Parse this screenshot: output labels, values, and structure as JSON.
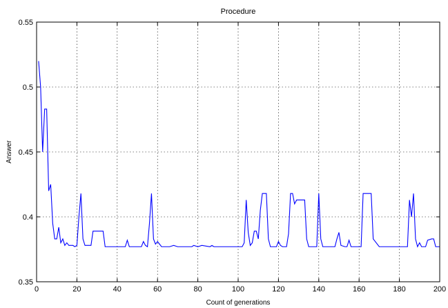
{
  "chart_data": {
    "type": "line",
    "title": "Procedure",
    "xlabel": "Count of generations",
    "ylabel": "Answer",
    "xlim": [
      0,
      200
    ],
    "ylim": [
      0.35,
      0.55
    ],
    "xticks": [
      0,
      20,
      40,
      60,
      80,
      100,
      120,
      140,
      160,
      180,
      200
    ],
    "yticks": [
      0.35,
      0.4,
      0.45,
      0.5,
      0.55
    ],
    "grid": true,
    "series_color": "#0000ff",
    "series": [
      {
        "x": [
          1,
          2,
          3,
          4,
          5,
          6,
          7,
          8,
          9,
          10,
          11,
          12,
          13,
          14,
          15,
          16,
          17,
          18,
          19,
          20,
          21,
          22,
          23,
          24,
          25,
          27,
          28,
          29,
          33,
          34,
          38,
          44,
          45,
          46,
          48,
          52,
          53,
          54,
          55,
          56,
          57,
          58,
          59,
          60,
          61,
          62,
          66,
          68,
          70,
          74,
          77,
          78,
          80,
          82,
          86,
          87,
          88,
          102,
          103,
          104,
          105,
          106,
          107,
          108,
          109,
          110,
          111,
          112,
          114,
          115,
          116,
          118,
          119,
          120,
          121,
          122,
          123,
          124,
          125,
          126,
          127,
          128,
          129,
          130,
          131,
          133,
          134,
          135,
          137,
          138,
          139,
          140,
          141,
          142,
          143,
          147,
          148,
          149,
          150,
          151,
          153,
          154,
          155,
          156,
          157,
          159,
          160,
          161,
          162,
          163,
          166,
          167,
          170,
          173,
          175,
          177,
          182,
          183,
          184,
          185,
          186,
          187,
          188,
          189,
          190,
          191,
          192,
          193,
          194,
          196,
          197,
          198,
          200
        ],
        "y": [
          0.52,
          0.5,
          0.45,
          0.483,
          0.483,
          0.42,
          0.425,
          0.395,
          0.383,
          0.383,
          0.392,
          0.38,
          0.383,
          0.378,
          0.38,
          0.378,
          0.378,
          0.378,
          0.377,
          0.378,
          0.4,
          0.418,
          0.383,
          0.378,
          0.378,
          0.378,
          0.389,
          0.389,
          0.389,
          0.377,
          0.377,
          0.377,
          0.382,
          0.377,
          0.377,
          0.377,
          0.381,
          0.378,
          0.377,
          0.395,
          0.418,
          0.383,
          0.379,
          0.381,
          0.379,
          0.377,
          0.377,
          0.378,
          0.377,
          0.377,
          0.377,
          0.378,
          0.377,
          0.378,
          0.377,
          0.378,
          0.377,
          0.377,
          0.38,
          0.413,
          0.388,
          0.378,
          0.38,
          0.389,
          0.389,
          0.383,
          0.405,
          0.418,
          0.418,
          0.383,
          0.377,
          0.377,
          0.377,
          0.381,
          0.378,
          0.377,
          0.377,
          0.377,
          0.387,
          0.418,
          0.418,
          0.41,
          0.413,
          0.413,
          0.413,
          0.413,
          0.383,
          0.377,
          0.377,
          0.377,
          0.377,
          0.418,
          0.383,
          0.377,
          0.377,
          0.377,
          0.377,
          0.383,
          0.388,
          0.378,
          0.377,
          0.377,
          0.382,
          0.377,
          0.377,
          0.377,
          0.377,
          0.377,
          0.418,
          0.418,
          0.418,
          0.383,
          0.377,
          0.377,
          0.377,
          0.377,
          0.377,
          0.377,
          0.377,
          0.413,
          0.4,
          0.418,
          0.383,
          0.377,
          0.38,
          0.377,
          0.377,
          0.377,
          0.382,
          0.383,
          0.383,
          0.377,
          0.377
        ]
      }
    ]
  }
}
